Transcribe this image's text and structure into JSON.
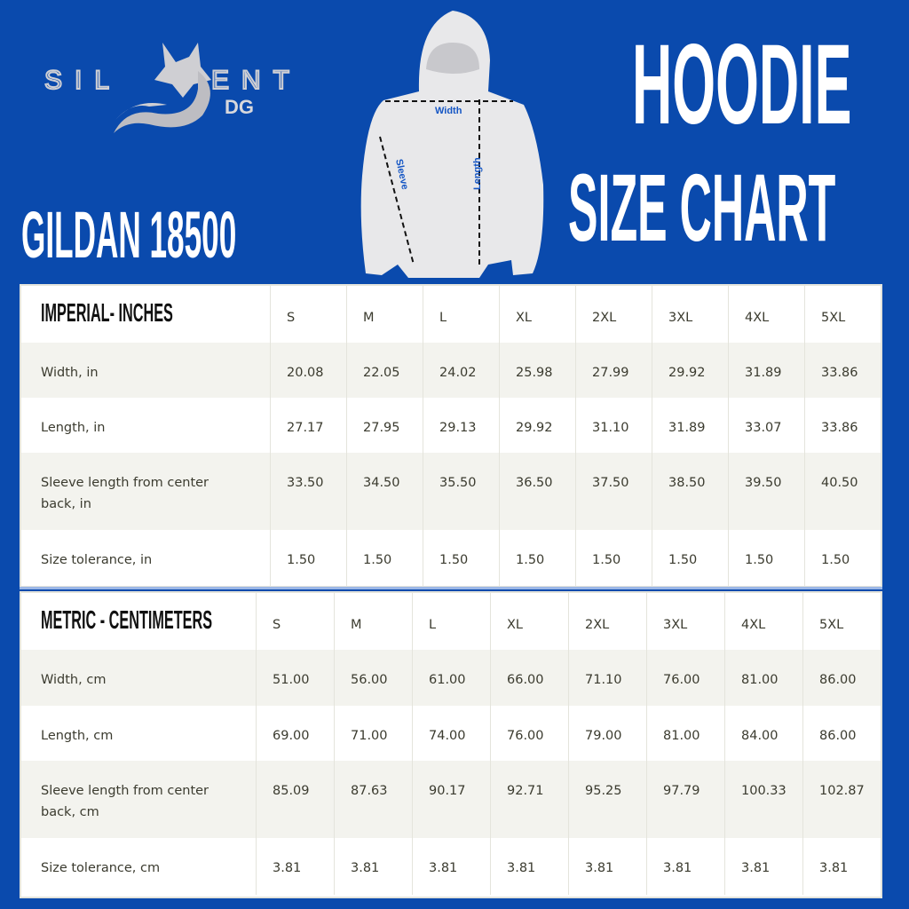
{
  "brand": {
    "logo_text": "SILENT DG"
  },
  "title": {
    "line1": "HOODIE",
    "line2": "SIZE CHART"
  },
  "model": "GILDAN 18500",
  "diagram_labels": {
    "width": "Width",
    "length": "Length",
    "sleeve": "Sleeve"
  },
  "colors": {
    "background": "#0a4aad",
    "label_blue": "#1556c4",
    "row_alt": "#f3f3ee"
  },
  "imperial": {
    "title": "IMPERIAL- INCHES",
    "sizes": [
      "S",
      "M",
      "L",
      "XL",
      "2XL",
      "3XL",
      "4XL",
      "5XL"
    ],
    "rows": [
      {
        "label": "Width, in",
        "values": [
          "20.08",
          "22.05",
          "24.02",
          "25.98",
          "27.99",
          "29.92",
          "31.89",
          "33.86"
        ]
      },
      {
        "label": "Length, in",
        "values": [
          "27.17",
          "27.95",
          "29.13",
          "29.92",
          "31.10",
          "31.89",
          "33.07",
          "33.86"
        ]
      },
      {
        "label": "Sleeve length from center back, in",
        "values": [
          "33.50",
          "34.50",
          "35.50",
          "36.50",
          "37.50",
          "38.50",
          "39.50",
          "40.50"
        ]
      },
      {
        "label": "Size tolerance, in",
        "values": [
          "1.50",
          "1.50",
          "1.50",
          "1.50",
          "1.50",
          "1.50",
          "1.50",
          "1.50"
        ]
      }
    ]
  },
  "metric": {
    "title": "METRIC - CENTIMETERS",
    "sizes": [
      "S",
      "M",
      "L",
      "XL",
      "2XL",
      "3XL",
      "4XL",
      "5XL"
    ],
    "rows": [
      {
        "label": "Width, cm",
        "values": [
          "51.00",
          "56.00",
          "61.00",
          "66.00",
          "71.10",
          "76.00",
          "81.00",
          "86.00"
        ]
      },
      {
        "label": "Length, cm",
        "values": [
          "69.00",
          "71.00",
          "74.00",
          "76.00",
          "79.00",
          "81.00",
          "84.00",
          "86.00"
        ]
      },
      {
        "label": "Sleeve length from center back, cm",
        "values": [
          "85.09",
          "87.63",
          "90.17",
          "92.71",
          "95.25",
          "97.79",
          "100.33",
          "102.87"
        ]
      },
      {
        "label": "Size tolerance, cm",
        "values": [
          "3.81",
          "3.81",
          "3.81",
          "3.81",
          "3.81",
          "3.81",
          "3.81",
          "3.81"
        ]
      }
    ]
  }
}
